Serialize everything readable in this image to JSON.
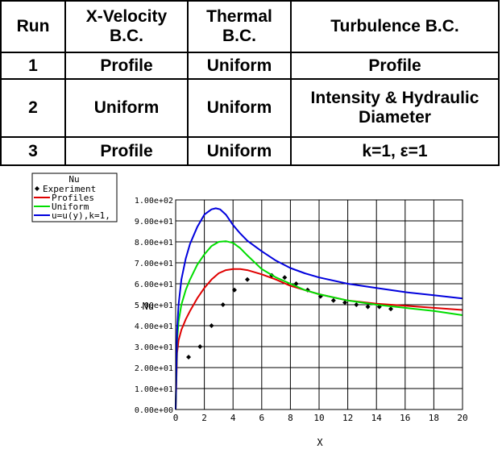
{
  "table": {
    "headers": [
      "Run",
      "X-Velocity\nB.C.",
      "Thermal\nB.C.",
      "Turbulence B.C."
    ],
    "rows": [
      [
        "1",
        "Profile",
        "Uniform",
        "Profile"
      ],
      [
        "2",
        "Uniform",
        "Uniform",
        "Intensity & Hydraulic\nDiameter"
      ],
      [
        "3",
        "Profile",
        "Uniform",
        "k=1, ε=1"
      ]
    ]
  },
  "chart_data": {
    "type": "line",
    "xlabel": "X",
    "ylabel": "Nu",
    "xlim": [
      0,
      20
    ],
    "ylim": [
      0,
      100
    ],
    "x_ticks": [
      "0",
      "2",
      "4",
      "6",
      "8",
      "10",
      "12",
      "14",
      "16",
      "18",
      "20"
    ],
    "y_ticks": [
      "0.00e+00",
      "1.00e+01",
      "2.00e+01",
      "3.00e+01",
      "4.00e+01",
      "5.00e+01",
      "6.00e+01",
      "7.00e+01",
      "8.00e+01",
      "9.00e+01",
      "1.00e+02"
    ],
    "grid": true,
    "legend": {
      "title": "Nu",
      "position": "top-left",
      "entries": [
        "Experiment",
        "Profiles",
        "Uniform",
        "u=u(y),k=1,"
      ]
    },
    "series": [
      {
        "name": "Experiment",
        "marker": "diamond",
        "color": "#000000",
        "x": [
          0.9,
          1.7,
          2.5,
          3.3,
          4.1,
          5.0,
          6.7,
          7.6,
          8.4,
          9.2,
          10.1,
          11.0,
          11.8,
          12.6,
          13.4,
          14.2,
          15.0
        ],
        "y": [
          25,
          30,
          40,
          50,
          57,
          62,
          64,
          63,
          60,
          57,
          54,
          52,
          51,
          50,
          49,
          49,
          48
        ]
      },
      {
        "name": "Profiles",
        "color": "#e00000",
        "x": [
          0,
          0.1,
          0.2,
          0.4,
          0.7,
          1.0,
          1.5,
          2.0,
          2.5,
          3.0,
          3.5,
          4.0,
          4.5,
          5.0,
          6.0,
          7.0,
          8.0,
          9.0,
          10.0,
          12.0,
          14.0,
          16.0,
          18.0,
          20.0
        ],
        "y": [
          0,
          27,
          33,
          38,
          43,
          47,
          53,
          58,
          62,
          65,
          66.5,
          67,
          67,
          66.5,
          64.5,
          62,
          59,
          57,
          55,
          52,
          50.5,
          49.5,
          48.5,
          47.5
        ]
      },
      {
        "name": "Uniform",
        "color": "#00dd00",
        "x": [
          0,
          0.1,
          0.2,
          0.4,
          0.7,
          1.0,
          1.5,
          2.0,
          2.5,
          3.0,
          3.5,
          4.0,
          4.5,
          5.0,
          6.0,
          7.0,
          8.0,
          9.0,
          10.0,
          12.0,
          14.0,
          16.0,
          18.0,
          20.0
        ],
        "y": [
          0,
          33,
          42,
          50,
          57,
          62,
          69,
          74,
          78,
          80,
          80.3,
          79.5,
          77,
          73.5,
          67,
          63,
          60,
          57,
          55,
          52,
          50,
          48.5,
          47,
          45
        ]
      },
      {
        "name": "u=u(y),k=1,",
        "color": "#0000dd",
        "x": [
          0,
          0.1,
          0.2,
          0.4,
          0.7,
          1.0,
          1.5,
          2.0,
          2.5,
          2.8,
          3.1,
          3.5,
          4.0,
          4.5,
          5.0,
          6.0,
          7.0,
          8.0,
          9.0,
          10.0,
          12.0,
          14.0,
          16.0,
          18.0,
          20.0
        ],
        "y": [
          0,
          38,
          50,
          62,
          72,
          79,
          87,
          93,
          95.5,
          96,
          95.5,
          93,
          88,
          84,
          80.5,
          75.5,
          71,
          67.5,
          65,
          63,
          60,
          58,
          56,
          54.5,
          53
        ]
      }
    ]
  }
}
